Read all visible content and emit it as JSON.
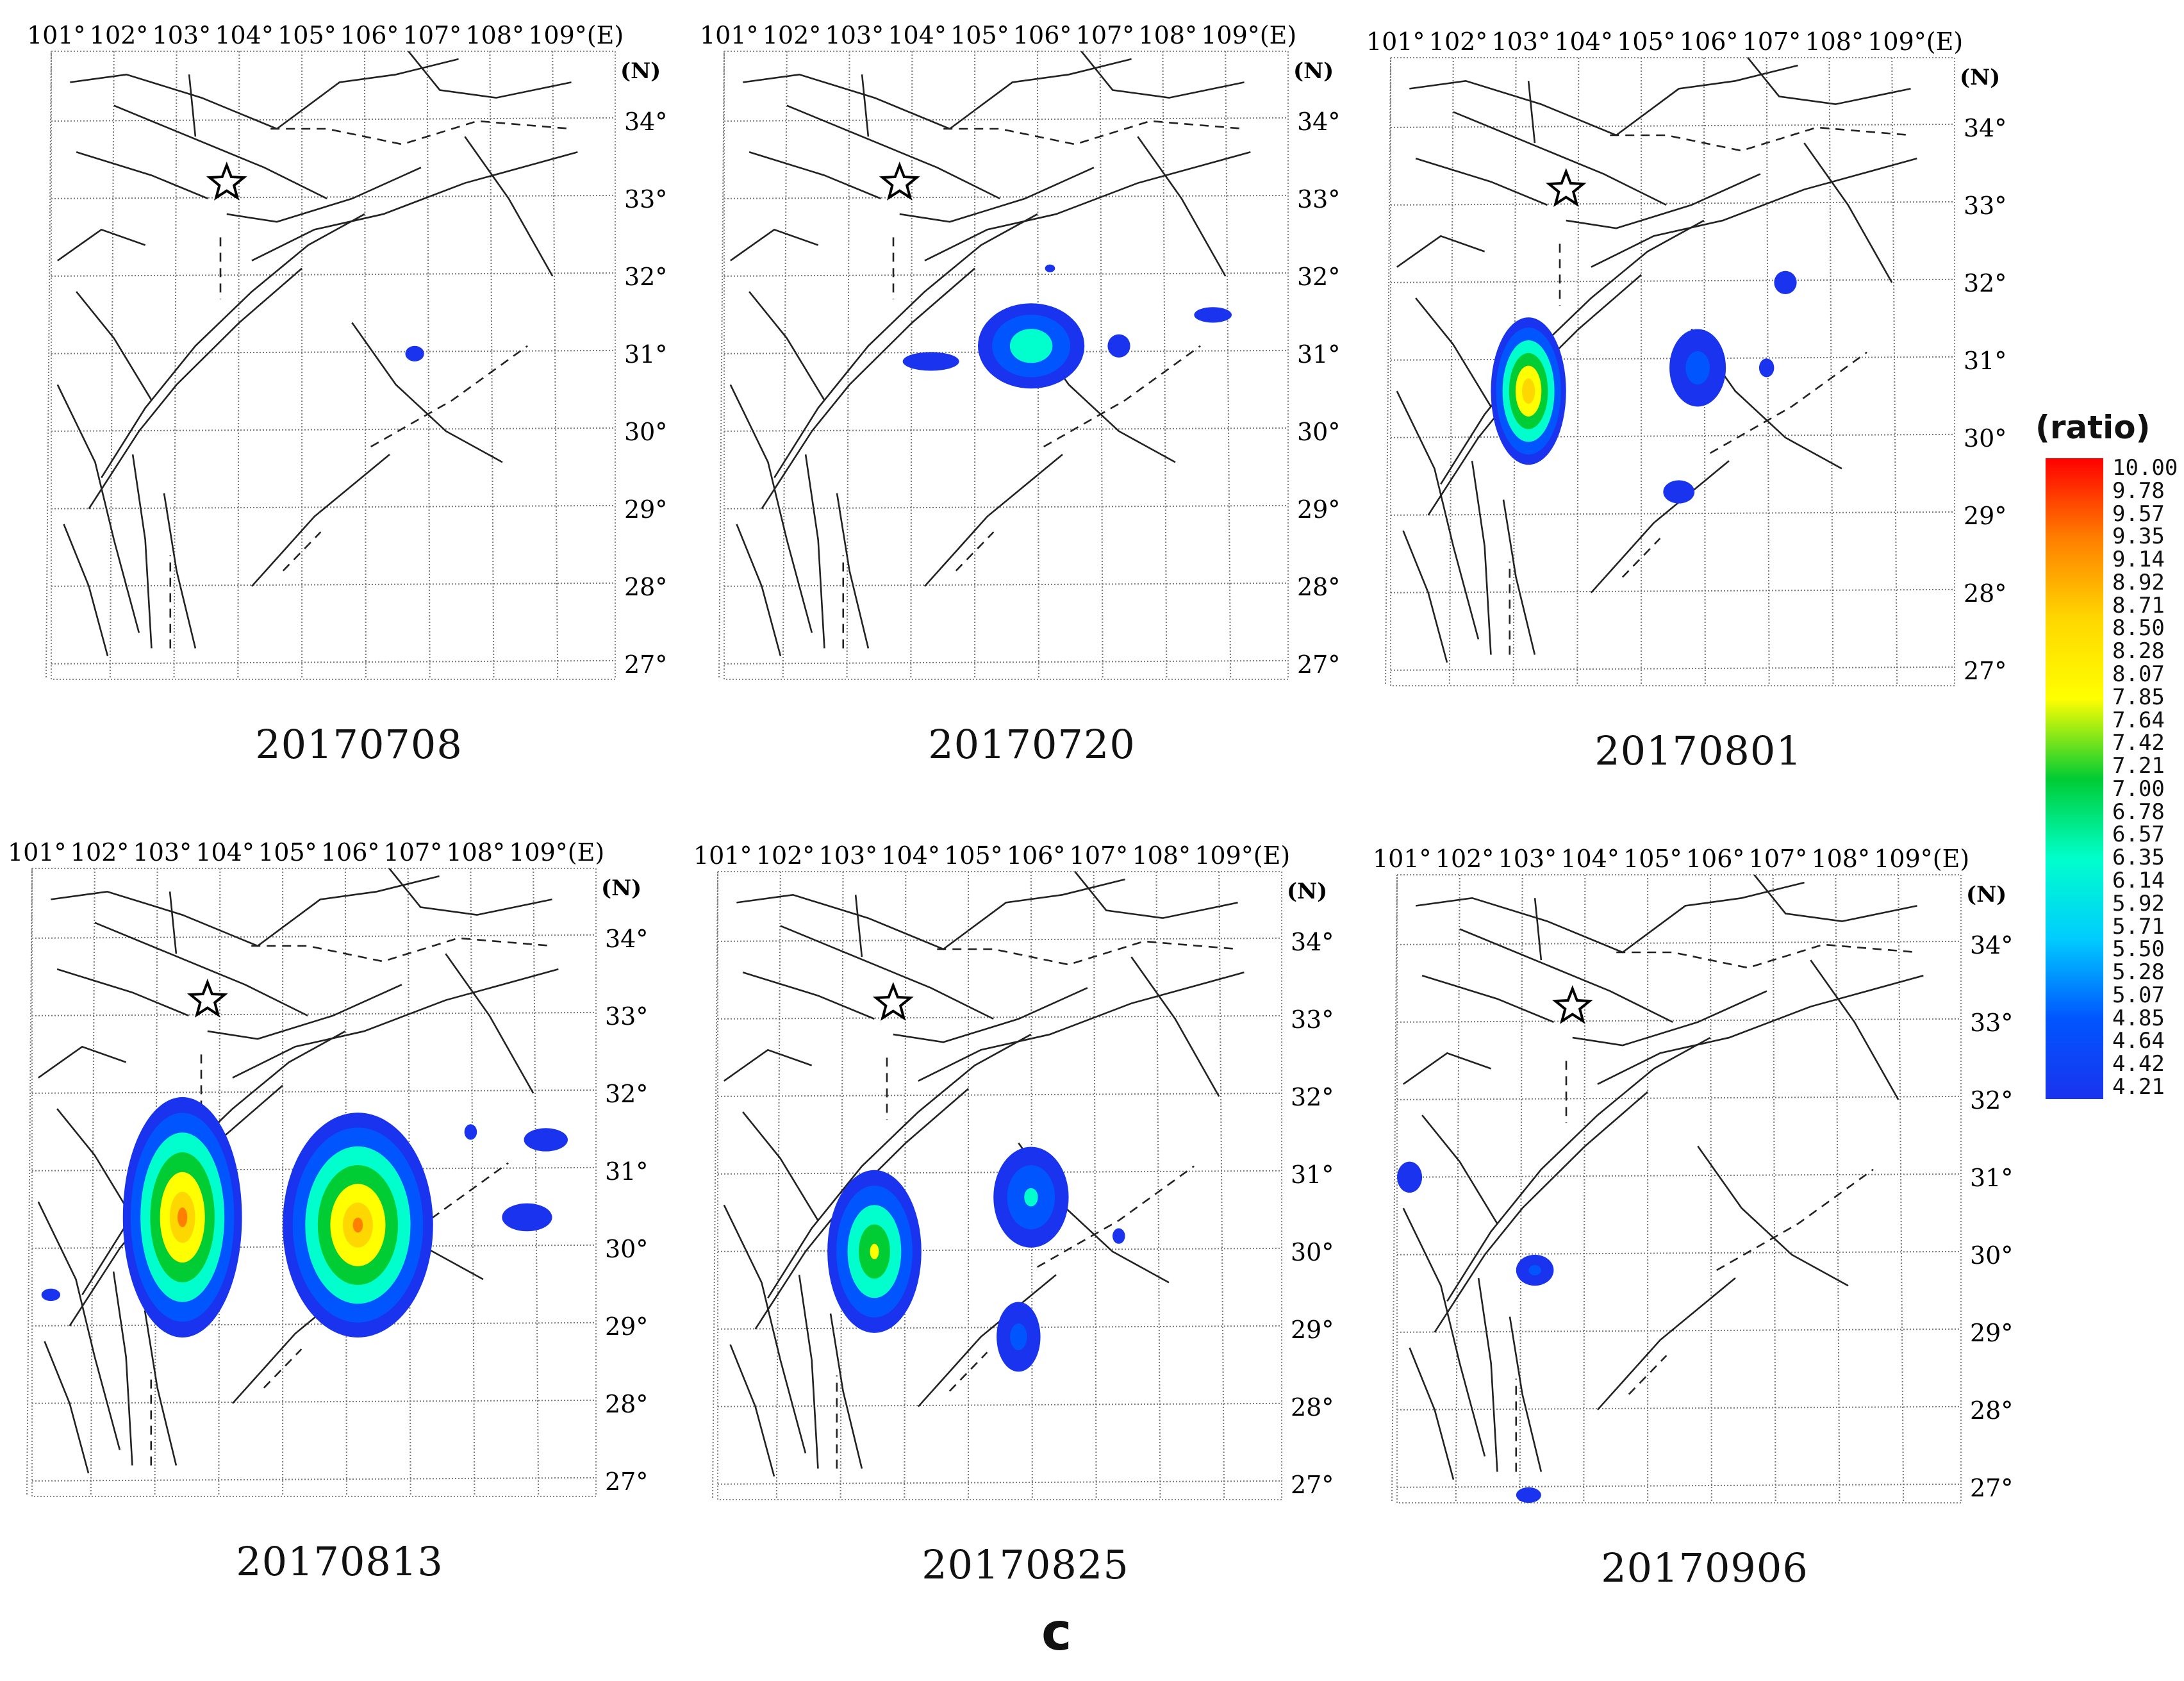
{
  "figure_label": "c",
  "legend": {
    "title": "(ratio)",
    "ticks": [
      "10.00",
      "9.78",
      "9.57",
      "9.35",
      "9.14",
      "8.92",
      "8.71",
      "8.50",
      "8.28",
      "8.07",
      "7.85",
      "7.64",
      "7.42",
      "7.21",
      "7.00",
      "6.78",
      "6.57",
      "6.35",
      "6.14",
      "5.92",
      "5.71",
      "5.50",
      "5.28",
      "5.07",
      "4.85",
      "4.64",
      "4.42",
      "4.21"
    ],
    "colors": [
      "#ff0000",
      "#ff7f00",
      "#ffd700",
      "#ffff00",
      "#00cc33",
      "#00ffcc",
      "#00ccff",
      "#0055ff",
      "#1a33ee"
    ]
  },
  "map": {
    "lon_labels": [
      "101°",
      "102°",
      "103°",
      "104°",
      "105°",
      "106°",
      "107°",
      "108°",
      "109°(E)"
    ],
    "lat_labels": [
      "34°",
      "33°",
      "32°",
      "31°",
      "30°",
      "29°",
      "28°",
      "27°"
    ],
    "north_label": "(N)",
    "epicenter_icon": "star-icon",
    "epicenter": {
      "lon": 103.8,
      "lat": 33.2
    }
  },
  "panels": [
    {
      "date": "20170708",
      "anomalies": [
        {
          "lon": 106.8,
          "lat": 31.0,
          "rx": 0.15,
          "ry": 0.1,
          "peak": 4.6
        }
      ]
    },
    {
      "date": "20170720",
      "anomalies": [
        {
          "lon": 105.9,
          "lat": 31.1,
          "rx": 0.85,
          "ry": 0.55,
          "peak": 6.8
        },
        {
          "lon": 104.3,
          "lat": 30.9,
          "rx": 0.45,
          "ry": 0.12,
          "peak": 4.8
        },
        {
          "lon": 107.3,
          "lat": 31.1,
          "rx": 0.18,
          "ry": 0.15,
          "peak": 4.9
        },
        {
          "lon": 108.8,
          "lat": 31.5,
          "rx": 0.3,
          "ry": 0.1,
          "peak": 4.7
        },
        {
          "lon": 106.2,
          "lat": 32.1,
          "rx": 0.08,
          "ry": 0.05,
          "peak": 4.3
        }
      ]
    },
    {
      "date": "20170801",
      "anomalies": [
        {
          "lon": 103.2,
          "lat": 30.6,
          "rx": 0.6,
          "ry": 0.95,
          "peak": 9.6
        },
        {
          "lon": 105.9,
          "lat": 30.9,
          "rx": 0.45,
          "ry": 0.5,
          "peak": 5.2
        },
        {
          "lon": 107.3,
          "lat": 32.0,
          "rx": 0.18,
          "ry": 0.15,
          "peak": 4.8
        },
        {
          "lon": 105.6,
          "lat": 29.3,
          "rx": 0.25,
          "ry": 0.15,
          "peak": 4.8
        },
        {
          "lon": 107.0,
          "lat": 30.9,
          "rx": 0.12,
          "ry": 0.12,
          "peak": 4.6
        }
      ]
    },
    {
      "date": "20170813",
      "anomalies": [
        {
          "lon": 103.4,
          "lat": 30.4,
          "rx": 0.95,
          "ry": 1.55,
          "peak": 9.9
        },
        {
          "lon": 106.2,
          "lat": 30.3,
          "rx": 1.2,
          "ry": 1.45,
          "peak": 9.8
        },
        {
          "lon": 109.2,
          "lat": 31.4,
          "rx": 0.35,
          "ry": 0.15,
          "peak": 4.9
        },
        {
          "lon": 108.9,
          "lat": 30.4,
          "rx": 0.4,
          "ry": 0.18,
          "peak": 4.8
        },
        {
          "lon": 108.0,
          "lat": 31.5,
          "rx": 0.1,
          "ry": 0.1,
          "peak": 4.5
        },
        {
          "lon": 101.3,
          "lat": 29.4,
          "rx": 0.15,
          "ry": 0.08,
          "peak": 4.5
        }
      ]
    },
    {
      "date": "20170825",
      "anomalies": [
        {
          "lon": 103.5,
          "lat": 30.0,
          "rx": 0.75,
          "ry": 1.05,
          "peak": 8.0
        },
        {
          "lon": 106.0,
          "lat": 30.7,
          "rx": 0.6,
          "ry": 0.65,
          "peak": 6.0
        },
        {
          "lon": 105.8,
          "lat": 28.9,
          "rx": 0.35,
          "ry": 0.45,
          "peak": 5.1
        },
        {
          "lon": 107.4,
          "lat": 30.2,
          "rx": 0.1,
          "ry": 0.1,
          "peak": 4.5
        }
      ]
    },
    {
      "date": "20170906",
      "anomalies": [
        {
          "lon": 101.2,
          "lat": 31.0,
          "rx": 0.2,
          "ry": 0.2,
          "peak": 4.9
        },
        {
          "lon": 103.2,
          "lat": 29.8,
          "rx": 0.3,
          "ry": 0.2,
          "peak": 5.0
        },
        {
          "lon": 103.1,
          "lat": 26.9,
          "rx": 0.2,
          "ry": 0.1,
          "peak": 4.6
        }
      ]
    }
  ]
}
